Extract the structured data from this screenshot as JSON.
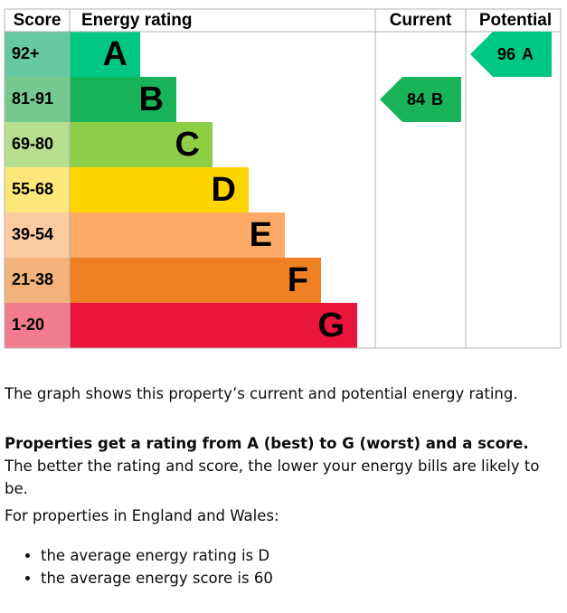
{
  "chart_data": {
    "type": "epc",
    "headers": {
      "score": "Score",
      "rating": "Energy rating",
      "current": "Current",
      "potential": "Potential"
    },
    "bands": [
      {
        "score": "92+",
        "letter": "A",
        "color": "#00c781",
        "light": "#67c9a3"
      },
      {
        "score": "81-91",
        "letter": "B",
        "color": "#19b459",
        "light": "#75c98f"
      },
      {
        "score": "69-80",
        "letter": "C",
        "color": "#8dce46",
        "light": "#b6df8f"
      },
      {
        "score": "55-68",
        "letter": "D",
        "color": "#ffd500",
        "light": "#fde77b"
      },
      {
        "score": "39-54",
        "letter": "E",
        "color": "#fcaa65",
        "light": "#fbcb9f"
      },
      {
        "score": "21-38",
        "letter": "F",
        "color": "#ef8023",
        "light": "#f3b27c"
      },
      {
        "score": "1-20",
        "letter": "G",
        "color": "#e9153b",
        "light": "#f07c8e"
      }
    ],
    "current": {
      "score": 84,
      "rating": "B"
    },
    "potential": {
      "score": 96,
      "rating": "A"
    }
  },
  "text": {
    "intro": "The graph shows this property’s current and potential energy rating.",
    "bold": "Properties get a rating from A (best) to G (worst) and a score.",
    "rest": " The better the rating and score, the lower your energy bills are likely to be.",
    "region": "For properties in England and Wales:",
    "bullets": [
      "the average energy rating is D",
      "the average energy score is 60"
    ]
  }
}
